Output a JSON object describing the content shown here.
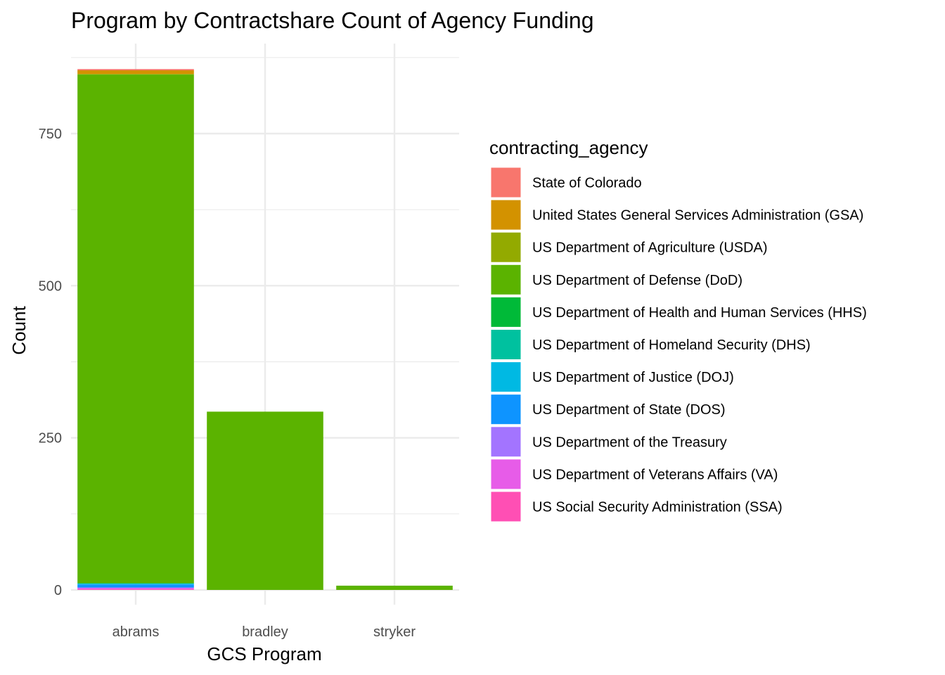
{
  "chart_data": {
    "type": "bar",
    "stacked": true,
    "title": "Program by Contractshare Count of Agency Funding",
    "xlabel": "GCS Program",
    "ylabel": "Count",
    "categories": [
      "abrams",
      "bradley",
      "stryker"
    ],
    "ylim": [
      0,
      860
    ],
    "yticks": [
      0,
      250,
      500,
      750
    ],
    "grid": true,
    "legend": {
      "title": "contracting_agency",
      "placement": "right"
    },
    "series": [
      {
        "name": "State of Colorado",
        "color": "#F8766D",
        "values": [
          2,
          0,
          0
        ]
      },
      {
        "name": "United States General Services Administration (GSA)",
        "color": "#D39200",
        "values": [
          6,
          0,
          0
        ]
      },
      {
        "name": "US Department of Agriculture (USDA)",
        "color": "#93AA00",
        "values": [
          1,
          0,
          0
        ]
      },
      {
        "name": "US Department of Defense (DoD)",
        "color": "#5BB300",
        "values": [
          836,
          293,
          7
        ]
      },
      {
        "name": "US Department of Health and Human Services (HHS)",
        "color": "#00BA38",
        "values": [
          0,
          0,
          0
        ]
      },
      {
        "name": "US Department of Homeland Security (DHS)",
        "color": "#00C19F",
        "values": [
          1,
          0,
          0
        ]
      },
      {
        "name": "US Department of Justice (DOJ)",
        "color": "#00B9E3",
        "values": [
          1,
          0,
          0
        ]
      },
      {
        "name": "US Department of State (DOS)",
        "color": "#0E94FF",
        "values": [
          5,
          0,
          0
        ]
      },
      {
        "name": "US Department of the Treasury",
        "color": "#A374FF",
        "values": [
          1,
          0,
          0
        ]
      },
      {
        "name": "US Department of Veterans Affairs (VA)",
        "color": "#E75CE8",
        "values": [
          2,
          0,
          0
        ]
      },
      {
        "name": "US Social Security Administration (SSA)",
        "color": "#FF4FB4",
        "values": [
          1,
          0,
          0
        ]
      }
    ]
  }
}
